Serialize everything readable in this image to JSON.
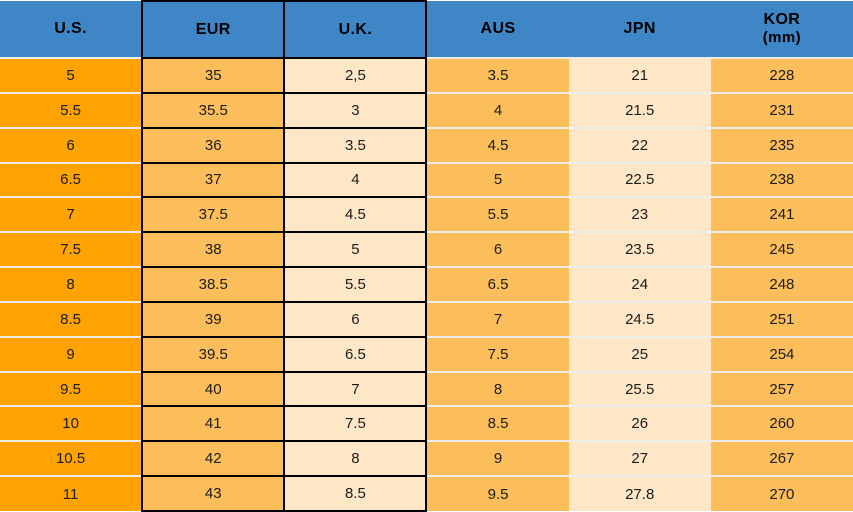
{
  "colors": {
    "header_bg": "#3F86C6",
    "column_strong_orange": "#FEA303",
    "column_medium_orange": "#FCBE5B",
    "column_cream": "#FDE7C7",
    "row_separator": "#EFEDE9",
    "cell_border_black": "#000000",
    "text": "#1C1C1C"
  },
  "table": {
    "columns": [
      {
        "id": "us",
        "label": "U.S.",
        "sublabel": "",
        "shade": "strong",
        "bordered": false
      },
      {
        "id": "eur",
        "label": "EUR",
        "sublabel": "",
        "shade": "medium",
        "bordered": true
      },
      {
        "id": "uk",
        "label": "U.K.",
        "sublabel": "",
        "shade": "light",
        "bordered": true
      },
      {
        "id": "aus",
        "label": "AUS",
        "sublabel": "",
        "shade": "medium",
        "bordered": false
      },
      {
        "id": "jpn",
        "label": "JPN",
        "sublabel": "",
        "shade": "light",
        "bordered": false
      },
      {
        "id": "kor",
        "label": "KOR",
        "sublabel": "(mm)",
        "shade": "medium",
        "bordered": false
      }
    ],
    "rows": [
      [
        "5",
        "35",
        "2,5",
        "3.5",
        "21",
        "228"
      ],
      [
        "5.5",
        "35.5",
        "3",
        "4",
        "21.5",
        "231"
      ],
      [
        "6",
        "36",
        "3.5",
        "4.5",
        "22",
        "235"
      ],
      [
        "6.5",
        "37",
        "4",
        "5",
        "22.5",
        "238"
      ],
      [
        "7",
        "37.5",
        "4.5",
        "5.5",
        "23",
        "241"
      ],
      [
        "7.5",
        "38",
        "5",
        "6",
        "23.5",
        "245"
      ],
      [
        "8",
        "38.5",
        "5.5",
        "6.5",
        "24",
        "248"
      ],
      [
        "8.5",
        "39",
        "6",
        "7",
        "24.5",
        "251"
      ],
      [
        "9",
        "39.5",
        "6.5",
        "7.5",
        "25",
        "254"
      ],
      [
        "9.5",
        "40",
        "7",
        "8",
        "25.5",
        "257"
      ],
      [
        "10",
        "41",
        "7.5",
        "8.5",
        "26",
        "260"
      ],
      [
        "10.5",
        "42",
        "8",
        "9",
        "27",
        "267"
      ],
      [
        "11",
        "43",
        "8.5",
        "9.5",
        "27.8",
        "270"
      ]
    ]
  },
  "chart_data": {
    "type": "table",
    "columns": [
      "U.S.",
      "EUR",
      "U.K.",
      "AUS",
      "JPN",
      "KOR (mm)"
    ],
    "rows": [
      [
        "5",
        "35",
        "2,5",
        "3.5",
        "21",
        "228"
      ],
      [
        "5.5",
        "35.5",
        "3",
        "4",
        "21.5",
        "231"
      ],
      [
        "6",
        "36",
        "3.5",
        "4.5",
        "22",
        "235"
      ],
      [
        "6.5",
        "37",
        "4",
        "5",
        "22.5",
        "238"
      ],
      [
        "7",
        "37.5",
        "4.5",
        "5.5",
        "23",
        "241"
      ],
      [
        "7.5",
        "38",
        "5",
        "6",
        "23.5",
        "245"
      ],
      [
        "8",
        "38.5",
        "5.5",
        "6.5",
        "24",
        "248"
      ],
      [
        "8.5",
        "39",
        "6",
        "7",
        "24.5",
        "251"
      ],
      [
        "9",
        "39.5",
        "6.5",
        "7.5",
        "25",
        "254"
      ],
      [
        "9.5",
        "40",
        "7",
        "8",
        "25.5",
        "257"
      ],
      [
        "10",
        "41",
        "7.5",
        "8.5",
        "26",
        "260"
      ],
      [
        "10.5",
        "42",
        "8",
        "9",
        "27",
        "267"
      ],
      [
        "11",
        "43",
        "8.5",
        "9.5",
        "27.8",
        "270"
      ]
    ]
  }
}
